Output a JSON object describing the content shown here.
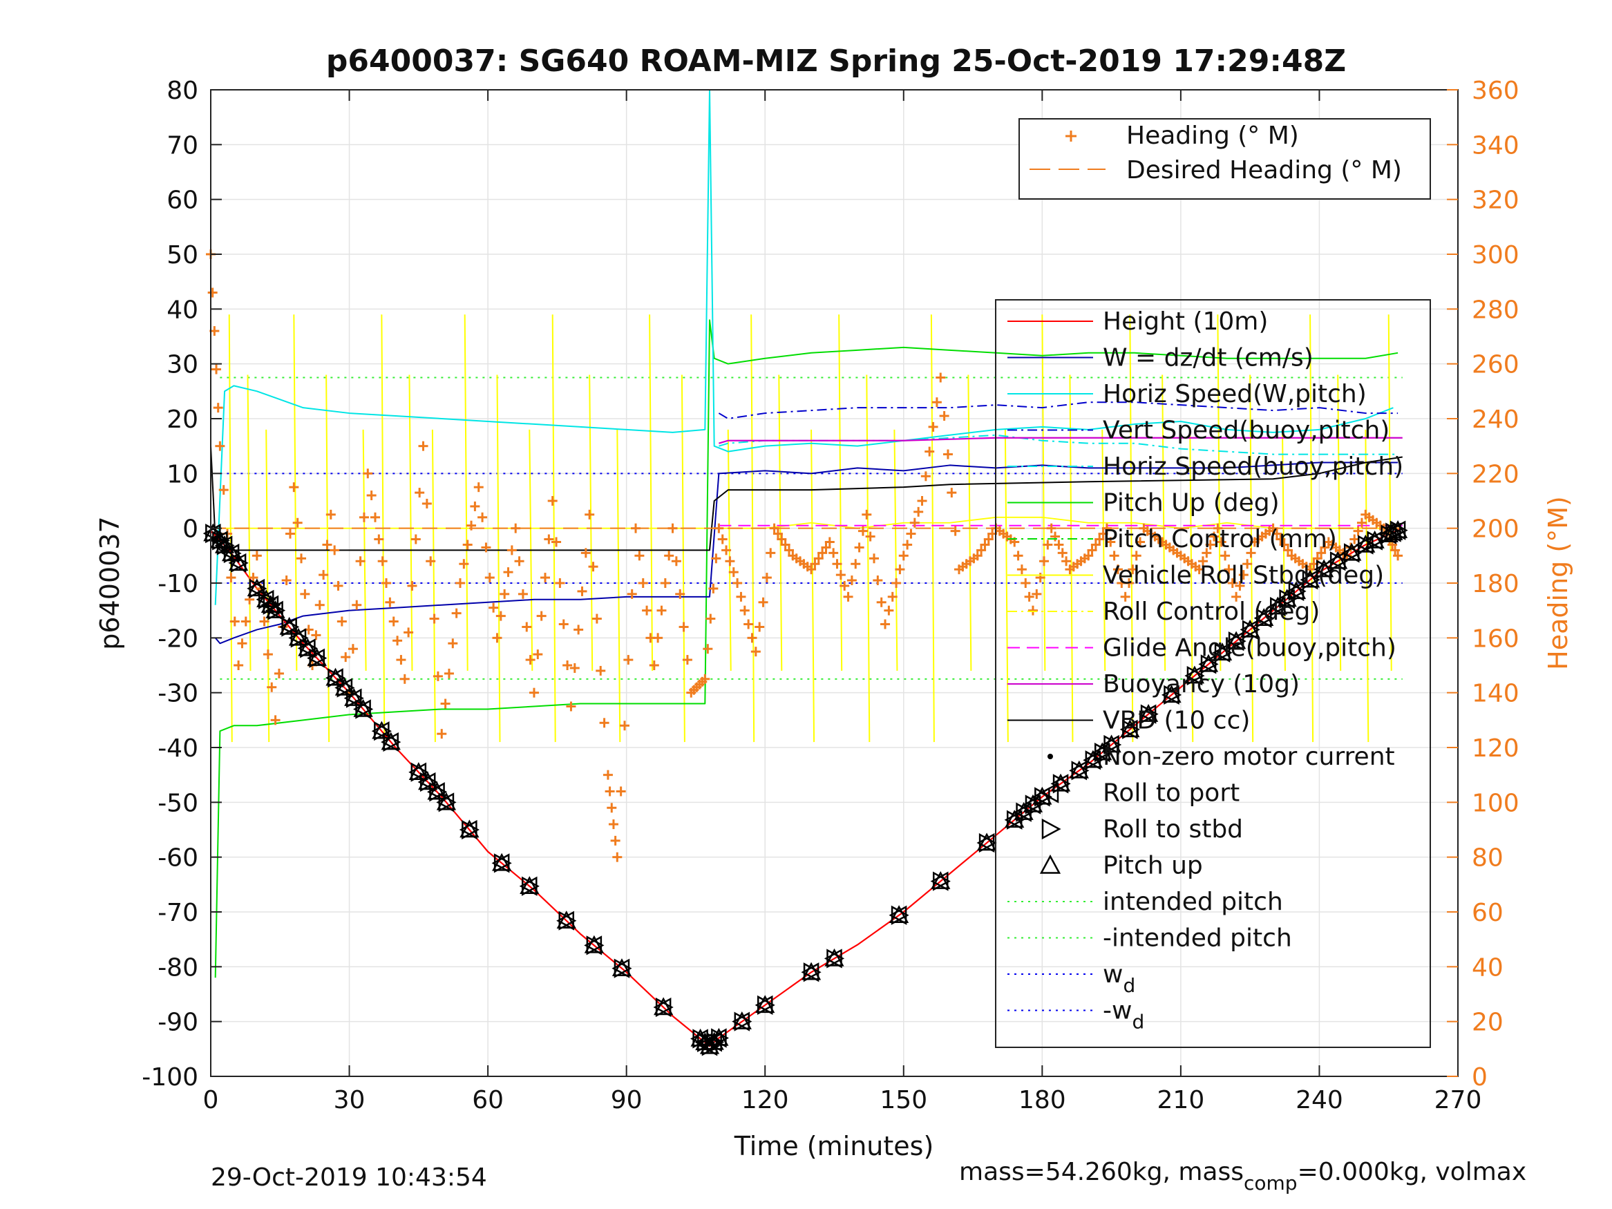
{
  "chart_data": {
    "type": "line",
    "title": "p6400037: SG640 ROAM-MIZ Spring 25-Oct-2019 17:29:48Z",
    "xlabel": "Time (minutes)",
    "ylabel": "p6400037",
    "ylabel_right": "Heading (°M)",
    "xlim": [
      0,
      270
    ],
    "ylim": [
      -100,
      80
    ],
    "ylim_right": [
      0,
      360
    ],
    "xticks": [
      0,
      30,
      60,
      90,
      120,
      150,
      180,
      210,
      240,
      270
    ],
    "yticks": [
      80,
      70,
      60,
      50,
      40,
      30,
      20,
      10,
      0,
      -10,
      -20,
      -30,
      -40,
      -50,
      -60,
      -70,
      -80,
      -90,
      -100
    ],
    "yticks_right": [
      360,
      340,
      320,
      300,
      280,
      260,
      240,
      220,
      200,
      180,
      160,
      140,
      120,
      100,
      80,
      60,
      40,
      20,
      0
    ],
    "grid": true,
    "legend_top": {
      "placement": "top-right",
      "entries": [
        {
          "label": "Heading (° M)",
          "color": "#f07c1e",
          "style": "plus"
        },
        {
          "label": "Desired Heading (° M)",
          "color": "#f07c1e",
          "style": "dashed"
        }
      ]
    },
    "legend_main": {
      "placement": "right",
      "entries": [
        {
          "label": "Height (10m)",
          "color": "#ff0000",
          "style": "solid"
        },
        {
          "label": "W = dz/dt (cm/s)",
          "color": "#0000aa",
          "style": "solid"
        },
        {
          "label": "Horiz Speed(W,pitch)",
          "color": "#00e5e5",
          "style": "solid"
        },
        {
          "label": "Vert Speed(buoy,pitch)",
          "color": "#0000cc",
          "style": "dashdot"
        },
        {
          "label": "Horiz Speed(buoy,pitch)",
          "color": "#00e5e5",
          "style": "dashdot"
        },
        {
          "label": "Pitch Up (deg)",
          "color": "#00dd00",
          "style": "solid"
        },
        {
          "label": "Pitch Control (mm)",
          "color": "#00dd00",
          "style": "dashdot"
        },
        {
          "label": "Vehicle Roll Stbd (deg)",
          "color": "#ffff00",
          "style": "solid"
        },
        {
          "label": "Roll Control (deg)",
          "color": "#ffff00",
          "style": "dashdot"
        },
        {
          "label": "Glide Angle(buoy,pitch)",
          "color": "#ff00ff",
          "style": "dashed"
        },
        {
          "label": "Buoyancy (10g)",
          "color": "#cc00cc",
          "style": "solid"
        },
        {
          "label": "VBD (10 cc)",
          "color": "#000000",
          "style": "solid"
        },
        {
          "label": "Non-zero motor current",
          "color": "#000000",
          "style": "dot"
        },
        {
          "label": "Roll to port",
          "color": "#000000",
          "style": "tri-left"
        },
        {
          "label": "Roll to stbd",
          "color": "#000000",
          "style": "tri-right"
        },
        {
          "label": "Pitch up",
          "color": "#000000",
          "style": "tri-up"
        },
        {
          "label": "intended pitch",
          "color": "#33ee33",
          "style": "dotted"
        },
        {
          "label": "-intended pitch",
          "color": "#33ee33",
          "style": "dotted"
        },
        {
          "label": "w",
          "sub": "d",
          "color": "#0000ee",
          "style": "dotted"
        },
        {
          "label": "-w",
          "sub": "d",
          "color": "#0000ee",
          "style": "dotted"
        }
      ]
    },
    "reference_lines": {
      "intended_pitch": 27.5,
      "neg_intended_pitch": -27.5,
      "w_d": 10,
      "neg_w_d": -10
    },
    "series": {
      "height": {
        "x": [
          0,
          4,
          10,
          20,
          30,
          40,
          50,
          60,
          70,
          80,
          90,
          100,
          108,
          110,
          120,
          130,
          140,
          150,
          160,
          170,
          180,
          190,
          200,
          210,
          220,
          230,
          240,
          250,
          258
        ],
        "y": [
          -0.5,
          -4,
          -11,
          -21,
          -30,
          -40,
          -49,
          -59,
          -66,
          -74,
          -81,
          -89,
          -94.5,
          -93,
          -87,
          -81,
          -76,
          -70,
          -63,
          -56,
          -49,
          -43,
          -36,
          -29,
          -22,
          -15,
          -8,
          -3,
          0
        ]
      },
      "w": {
        "x": [
          1,
          2,
          5,
          10,
          15,
          20,
          30,
          40,
          50,
          60,
          70,
          80,
          90,
          100,
          108,
          110,
          120,
          130,
          140,
          150,
          160,
          170,
          180,
          190,
          200,
          210,
          220,
          230,
          240,
          250,
          257
        ],
        "y": [
          -20,
          -21,
          -20,
          -18.5,
          -17.5,
          -16,
          -15,
          -14.5,
          -14,
          -13.5,
          -13,
          -13,
          -12.5,
          -12.5,
          -12.5,
          10,
          10.5,
          10,
          11,
          10.5,
          11.5,
          11,
          11.5,
          11,
          11,
          11,
          11,
          11.5,
          12,
          12,
          12
        ]
      },
      "horiz_speed_w": {
        "x": [
          1,
          3,
          5,
          10,
          20,
          30,
          40,
          50,
          60,
          70,
          80,
          90,
          100,
          107,
          108,
          109,
          112,
          120,
          130,
          140,
          150,
          160,
          170,
          180,
          190,
          200,
          210,
          220,
          230,
          240,
          250,
          256
        ],
        "y": [
          -14,
          25,
          26,
          25,
          22,
          21,
          20.5,
          20,
          19.5,
          19,
          18.5,
          18,
          17.5,
          18,
          80,
          15,
          14,
          15,
          15.5,
          15,
          16,
          17,
          18,
          18.5,
          18,
          19,
          19.5,
          18,
          17.5,
          18,
          20,
          22
        ]
      },
      "vert_speed_buoy": {
        "x": [
          110,
          112,
          120,
          130,
          140,
          150,
          160,
          170,
          180,
          190,
          200,
          210,
          220,
          230,
          240,
          250,
          257
        ],
        "y": [
          21,
          20,
          21,
          21.5,
          22,
          22,
          22,
          22.5,
          22,
          23,
          23,
          22.5,
          22,
          21.5,
          22,
          21,
          21
        ]
      },
      "horiz_speed_buoy": {
        "x": [
          110,
          112,
          120,
          130,
          140,
          150,
          160,
          170,
          180,
          190,
          200,
          210,
          220,
          230,
          240,
          250,
          257
        ],
        "y": [
          15,
          15.5,
          16,
          16,
          16,
          16,
          16.5,
          17,
          16,
          15.5,
          15.5,
          14.5,
          14,
          13.5,
          13.5,
          13.5,
          13.5
        ]
      },
      "pitch_up": {
        "x": [
          1,
          2,
          5,
          10,
          20,
          30,
          40,
          50,
          60,
          70,
          80,
          90,
          100,
          107,
          108,
          109,
          112,
          120,
          130,
          140,
          150,
          160,
          170,
          180,
          190,
          200,
          210,
          220,
          230,
          240,
          250,
          257
        ],
        "y": [
          -82,
          -37,
          -36,
          -36,
          -35,
          -34,
          -33.5,
          -33,
          -33,
          -32.5,
          -32,
          -32,
          -32,
          -32,
          38,
          31,
          30,
          31,
          32,
          32.5,
          33,
          32.5,
          32,
          31.5,
          32,
          32,
          31.5,
          31,
          31,
          31,
          31,
          32
        ]
      },
      "roll": {
        "x": [
          0,
          5,
          10,
          20,
          30,
          40,
          50,
          60,
          70,
          80,
          90,
          100,
          108,
          110,
          120,
          130,
          140,
          150,
          160,
          170,
          180,
          190,
          200,
          210,
          220,
          230,
          240,
          250,
          258
        ],
        "y": [
          0,
          0,
          0,
          0,
          0,
          0,
          0,
          0,
          0,
          0,
          0,
          0,
          0,
          0,
          0,
          1,
          0,
          1,
          1,
          2,
          2,
          1,
          1,
          0,
          1,
          0,
          0,
          0,
          0
        ]
      },
      "vbd": {
        "x": [
          0,
          1,
          2,
          108,
          109,
          112,
          130,
          150,
          160,
          190,
          230,
          240,
          250,
          258
        ],
        "y": [
          15,
          -2,
          -4,
          -4,
          5,
          7,
          7,
          7.5,
          8,
          8.5,
          9,
          10,
          12,
          13
        ]
      },
      "buoyancy": {
        "x": [
          110,
          112,
          150,
          170,
          200,
          230,
          258
        ],
        "y": [
          15.5,
          16,
          16,
          16.5,
          16.5,
          16.5,
          16.5
        ]
      },
      "glide_angle": {
        "x": [
          110,
          258
        ],
        "y": [
          0.5,
          0.5
        ]
      },
      "heading": {
        "x": [
          0,
          2,
          6,
          10,
          14,
          18,
          22,
          26,
          30,
          34,
          38,
          42,
          46,
          50,
          54,
          58,
          62,
          66,
          70,
          74,
          78,
          82,
          86,
          88,
          92,
          96,
          100,
          104,
          107,
          110,
          114,
          118,
          122,
          126,
          130,
          134,
          138,
          142,
          146,
          150,
          154,
          158,
          162,
          166,
          170,
          174,
          178,
          182,
          186,
          190,
          194,
          198,
          202,
          206,
          210,
          214,
          218,
          222,
          226,
          230,
          234,
          238,
          242,
          246,
          250,
          254,
          257
        ],
        "y": [
          300,
          230,
          150,
          190,
          130,
          215,
          150,
          205,
          140,
          220,
          180,
          145,
          230,
          125,
          180,
          215,
          160,
          200,
          140,
          210,
          135,
          205,
          110,
          80,
          200,
          150,
          200,
          140,
          145,
          200,
          180,
          155,
          200,
          190,
          185,
          195,
          175,
          205,
          165,
          190,
          210,
          255,
          185,
          190,
          200,
          195,
          170,
          200,
          185,
          190,
          200,
          175,
          200,
          195,
          190,
          185,
          200,
          175,
          195,
          200,
          190,
          185,
          195,
          190,
          205,
          200,
          190
        ]
      },
      "desired_heading": {
        "x": [
          0,
          258
        ],
        "y": [
          200,
          200
        ]
      }
    },
    "annotations": {
      "timestamp": "29-Oct-2019 10:43:54",
      "mass_text_1": "mass=54.260kg, mass",
      "mass_sub": "comp",
      "mass_text_2": "=0.000kg, volmax"
    }
  }
}
